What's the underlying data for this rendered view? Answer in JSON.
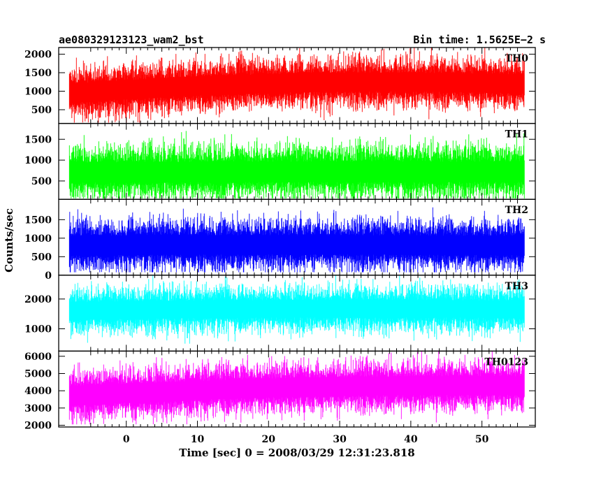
{
  "header": {
    "left_title": "ae080329123123_wam2_bst",
    "right_title": "Bin time: 1.5625E−2 s"
  },
  "chart_data": {
    "type": "line",
    "xlabel": "Time [sec] 0 = 2008/03/29 12:31:23.818",
    "ylabel": "Counts/sec",
    "xlim": [
      -9.5,
      57.5
    ],
    "x_ticks": [
      0,
      10,
      20,
      30,
      40,
      50
    ],
    "x_data_range": [
      -8,
      56
    ],
    "grid": false,
    "panels": [
      {
        "name": "TH0",
        "color": "#ff0000",
        "ylim": [
          130,
          2180
        ],
        "y_ticks": [
          500,
          1000,
          1500,
          2000
        ],
        "mean_start": 950,
        "mean_end": 1200,
        "mean_peak": 1350,
        "spread": 420,
        "floor": 150
      },
      {
        "name": "TH1",
        "color": "#00ff00",
        "ylim": [
          60,
          1880
        ],
        "y_ticks": [
          500,
          1000,
          1500
        ],
        "mean_start": 700,
        "mean_end": 720,
        "mean_peak": 730,
        "spread": 400,
        "floor": 80
      },
      {
        "name": "TH2",
        "color": "#0000ff",
        "ylim": [
          0,
          2050
        ],
        "y_ticks": [
          0,
          500,
          1000,
          1500
        ],
        "mean_start": 800,
        "mean_end": 800,
        "mean_peak": 820,
        "spread": 430,
        "floor": 80
      },
      {
        "name": "TH3",
        "color": "#00ffff",
        "ylim": [
          250,
          2800
        ],
        "y_ticks": [
          1000,
          2000
        ],
        "mean_start": 1600,
        "mean_end": 1650,
        "mean_peak": 1700,
        "spread": 480,
        "floor": 500
      },
      {
        "name": "TH0123",
        "color": "#ff00ff",
        "ylim": [
          1900,
          6300
        ],
        "y_ticks": [
          2000,
          3000,
          4000,
          5000,
          6000
        ],
        "mean_start": 3700,
        "mean_end": 4300,
        "mean_peak": 4500,
        "spread": 900,
        "floor": 2050
      }
    ]
  }
}
